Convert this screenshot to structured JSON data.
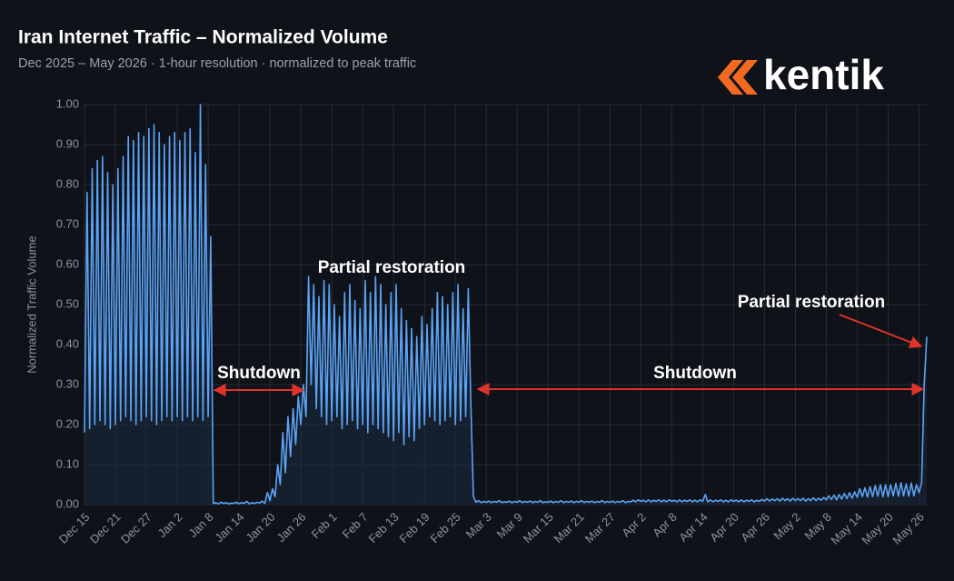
{
  "chart_data": {
    "type": "line",
    "title": "Iran Internet Traffic – Normalized Volume",
    "subtitle": "Dec 2025 – May 2026  ·  1-hour resolution  ·  normalized to peak traffic",
    "brand": "kentik",
    "y_label": "Normalized Traffic Volume",
    "color": "#5ba3f5",
    "grid": true,
    "ylim": [
      0,
      1
    ],
    "yticks": [
      {
        "value": 0,
        "label": "0.00"
      },
      {
        "value": 0.1,
        "label": "0.10"
      },
      {
        "value": 0.2,
        "label": "0.20"
      },
      {
        "value": 0.3,
        "label": "0.30"
      },
      {
        "value": 0.4,
        "label": "0.40"
      },
      {
        "value": 0.5,
        "label": "0.50"
      },
      {
        "value": 0.6,
        "label": "0.60"
      },
      {
        "value": 0.7,
        "label": "0.70"
      },
      {
        "value": 0.8,
        "label": "0.80"
      },
      {
        "value": 0.9,
        "label": "0.90"
      },
      {
        "value": 1,
        "label": "1.00"
      }
    ],
    "annotations": [
      "Shutdown",
      "Partial restoration",
      "Shutdown",
      "Partial restoration"
    ],
    "categories": [
      "Dec 15",
      null,
      null,
      null,
      null,
      null,
      null,
      null,
      null,
      null,
      null,
      null,
      "Dec 21",
      null,
      null,
      null,
      null,
      null,
      null,
      null,
      null,
      null,
      null,
      null,
      "Dec 27",
      null,
      null,
      null,
      null,
      null,
      null,
      null,
      null,
      null,
      null,
      null,
      "Jan 2",
      null,
      null,
      null,
      null,
      null,
      null,
      null,
      null,
      null,
      null,
      null,
      "Jan 8",
      null,
      null,
      null,
      null,
      null,
      null,
      null,
      null,
      null,
      null,
      null,
      "Jan 14",
      null,
      null,
      null,
      null,
      null,
      null,
      null,
      null,
      null,
      null,
      null,
      "Jan 20",
      null,
      null,
      null,
      null,
      null,
      null,
      null,
      null,
      null,
      null,
      null,
      "Jan 26",
      null,
      null,
      null,
      null,
      null,
      null,
      null,
      null,
      null,
      null,
      null,
      "Feb 1",
      null,
      null,
      null,
      null,
      null,
      null,
      null,
      null,
      null,
      null,
      null,
      "Feb 7",
      null,
      null,
      null,
      null,
      null,
      null,
      null,
      null,
      null,
      null,
      null,
      "Feb 13",
      null,
      null,
      null,
      null,
      null,
      null,
      null,
      null,
      null,
      null,
      null,
      "Feb 19",
      null,
      null,
      null,
      null,
      null,
      null,
      null,
      null,
      null,
      null,
      null,
      "Feb 25",
      null,
      null,
      null,
      null,
      null,
      null,
      null,
      null,
      null,
      null,
      null,
      "Mar 3",
      null,
      null,
      null,
      null,
      null,
      null,
      null,
      null,
      null,
      null,
      null,
      "Mar 9",
      null,
      null,
      null,
      null,
      null,
      null,
      null,
      null,
      null,
      null,
      null,
      "Mar 15",
      null,
      null,
      null,
      null,
      null,
      null,
      null,
      null,
      null,
      null,
      null,
      "Mar 21",
      null,
      null,
      null,
      null,
      null,
      null,
      null,
      null,
      null,
      null,
      null,
      "Mar 27",
      null,
      null,
      null,
      null,
      null,
      null,
      null,
      null,
      null,
      null,
      null,
      "Apr 2",
      null,
      null,
      null,
      null,
      null,
      null,
      null,
      null,
      null,
      null,
      null,
      "Apr 8",
      null,
      null,
      null,
      null,
      null,
      null,
      null,
      null,
      null,
      null,
      null,
      "Apr 14",
      null,
      null,
      null,
      null,
      null,
      null,
      null,
      null,
      null,
      null,
      null,
      "Apr 20",
      null,
      null,
      null,
      null,
      null,
      null,
      null,
      null,
      null,
      null,
      null,
      "Apr 26",
      null,
      null,
      null,
      null,
      null,
      null,
      null,
      null,
      null,
      null,
      null,
      "May 2",
      null,
      null,
      null,
      null,
      null,
      null,
      null,
      null,
      null,
      null,
      null,
      "May 8",
      null,
      null,
      null,
      null,
      null,
      null,
      null,
      null,
      null,
      null,
      null,
      "May 14",
      null,
      null,
      null,
      null,
      null,
      null,
      null,
      null,
      null,
      null,
      null,
      "May 20",
      null,
      null,
      null,
      null,
      null,
      null,
      null,
      null,
      null,
      null,
      null,
      "May 26",
      null,
      null,
      null
    ],
    "values": [
      0.18,
      0.78,
      0.19,
      0.84,
      0.2,
      0.86,
      0.21,
      0.87,
      0.2,
      0.83,
      0.19,
      0.8,
      0.2,
      0.84,
      0.21,
      0.87,
      0.22,
      0.92,
      0.21,
      0.91,
      0.2,
      0.93,
      0.21,
      0.92,
      0.22,
      0.94,
      0.21,
      0.95,
      0.2,
      0.93,
      0.21,
      0.9,
      0.22,
      0.92,
      0.21,
      0.93,
      0.22,
      0.91,
      0.21,
      0.93,
      0.22,
      0.94,
      0.21,
      0.88,
      0.22,
      1.0,
      0.21,
      0.85,
      0.22,
      0.67,
      0.003,
      0.005,
      0.002,
      0.006,
      0.003,
      0.005,
      0.002,
      0.004,
      0.003,
      0.006,
      0.002,
      0.005,
      0.003,
      0.008,
      0.002,
      0.005,
      0.003,
      0.006,
      0.004,
      0.009,
      0.003,
      0.03,
      0.01,
      0.04,
      0.02,
      0.1,
      0.05,
      0.18,
      0.08,
      0.22,
      0.12,
      0.24,
      0.15,
      0.27,
      0.2,
      0.3,
      0.22,
      0.57,
      0.3,
      0.55,
      0.24,
      0.52,
      0.22,
      0.56,
      0.2,
      0.55,
      0.21,
      0.5,
      0.22,
      0.47,
      0.19,
      0.53,
      0.2,
      0.55,
      0.21,
      0.51,
      0.19,
      0.49,
      0.2,
      0.56,
      0.18,
      0.53,
      0.2,
      0.57,
      0.19,
      0.55,
      0.18,
      0.5,
      0.17,
      0.53,
      0.16,
      0.55,
      0.18,
      0.49,
      0.15,
      0.46,
      0.17,
      0.44,
      0.16,
      0.42,
      0.19,
      0.47,
      0.2,
      0.45,
      0.22,
      0.49,
      0.21,
      0.53,
      0.2,
      0.52,
      0.21,
      0.5,
      0.22,
      0.53,
      0.2,
      0.55,
      0.21,
      0.49,
      0.22,
      0.54,
      0.25,
      0.02,
      0.006,
      0.01,
      0.005,
      0.008,
      0.006,
      0.009,
      0.005,
      0.008,
      0.006,
      0.01,
      0.005,
      0.007,
      0.006,
      0.009,
      0.005,
      0.008,
      0.006,
      0.01,
      0.005,
      0.008,
      0.006,
      0.009,
      0.005,
      0.008,
      0.006,
      0.01,
      0.005,
      0.007,
      0.006,
      0.009,
      0.005,
      0.008,
      0.006,
      0.01,
      0.005,
      0.008,
      0.006,
      0.009,
      0.005,
      0.008,
      0.006,
      0.01,
      0.005,
      0.008,
      0.006,
      0.009,
      0.005,
      0.008,
      0.006,
      0.01,
      0.005,
      0.008,
      0.006,
      0.009,
      0.005,
      0.008,
      0.006,
      0.01,
      0.005,
      0.008,
      0.007,
      0.011,
      0.007,
      0.012,
      0.008,
      0.011,
      0.007,
      0.012,
      0.007,
      0.011,
      0.008,
      0.012,
      0.007,
      0.011,
      0.007,
      0.012,
      0.008,
      0.011,
      0.007,
      0.012,
      0.007,
      0.011,
      0.008,
      0.012,
      0.007,
      0.011,
      0.007,
      0.012,
      0.008,
      0.025,
      0.007,
      0.012,
      0.007,
      0.011,
      0.008,
      0.012,
      0.007,
      0.011,
      0.007,
      0.012,
      0.008,
      0.011,
      0.007,
      0.012,
      0.007,
      0.011,
      0.008,
      0.012,
      0.007,
      0.011,
      0.008,
      0.013,
      0.009,
      0.015,
      0.009,
      0.014,
      0.01,
      0.015,
      0.009,
      0.016,
      0.01,
      0.015,
      0.009,
      0.016,
      0.01,
      0.015,
      0.01,
      0.016,
      0.009,
      0.015,
      0.01,
      0.017,
      0.01,
      0.016,
      0.011,
      0.018,
      0.012,
      0.022,
      0.013,
      0.024,
      0.012,
      0.025,
      0.014,
      0.028,
      0.015,
      0.03,
      0.016,
      0.032,
      0.018,
      0.04,
      0.02,
      0.042,
      0.019,
      0.045,
      0.02,
      0.048,
      0.021,
      0.05,
      0.02,
      0.05,
      0.02,
      0.05,
      0.022,
      0.053,
      0.021,
      0.055,
      0.022,
      0.052,
      0.021,
      0.054,
      0.022,
      0.05,
      0.03,
      0.055,
      0.3,
      0.42
    ]
  }
}
